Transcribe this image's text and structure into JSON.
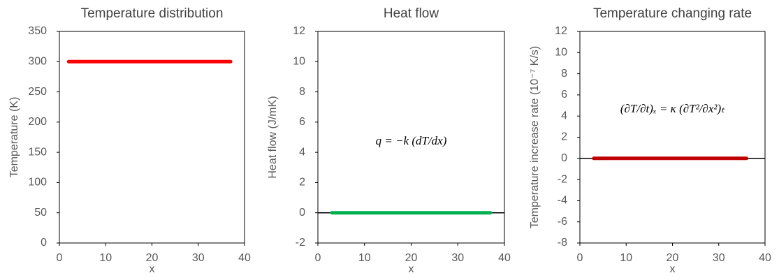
{
  "chart_data": [
    {
      "type": "line",
      "title": "Temperature distribution",
      "xlabel": "x",
      "ylabel": "Temperature (K)",
      "xlim": [
        0,
        40
      ],
      "xticks": [
        0,
        10,
        20,
        30,
        40
      ],
      "ylim": [
        0,
        350
      ],
      "yticks": [
        0,
        50,
        100,
        150,
        200,
        250,
        300,
        350
      ],
      "series": [
        {
          "color": "#ff0000",
          "x": [
            2,
            37
          ],
          "values": [
            300,
            300
          ]
        }
      ]
    },
    {
      "type": "line",
      "title": "Heat flow",
      "xlabel": "x",
      "ylabel": "Heat flow (J/mK)",
      "xlim": [
        0,
        40
      ],
      "xticks": [
        0,
        10,
        20,
        30,
        40
      ],
      "ylim": [
        -2,
        12
      ],
      "yticks": [
        -2,
        0,
        2,
        4,
        6,
        8,
        10,
        12
      ],
      "annotation": "q = −k (dT/dx)",
      "series": [
        {
          "color": "#00b050",
          "x": [
            3,
            37
          ],
          "values": [
            0,
            0
          ]
        }
      ]
    },
    {
      "type": "line",
      "title": "Temperature changing rate",
      "xlabel": "x",
      "ylabel": "Temperature increase rate (10⁻⁷ K/s)",
      "xlim": [
        0,
        40
      ],
      "xticks": [
        0,
        10,
        20,
        30,
        40
      ],
      "ylim": [
        -8,
        12
      ],
      "yticks": [
        -8,
        -6,
        -4,
        -2,
        0,
        2,
        4,
        6,
        8,
        10,
        12
      ],
      "annotation": "(∂T/∂t)ₓ = κ (∂T²/∂x²)ₜ",
      "series": [
        {
          "color": "#c00000",
          "x": [
            3,
            36
          ],
          "values": [
            0,
            0
          ]
        }
      ]
    }
  ]
}
